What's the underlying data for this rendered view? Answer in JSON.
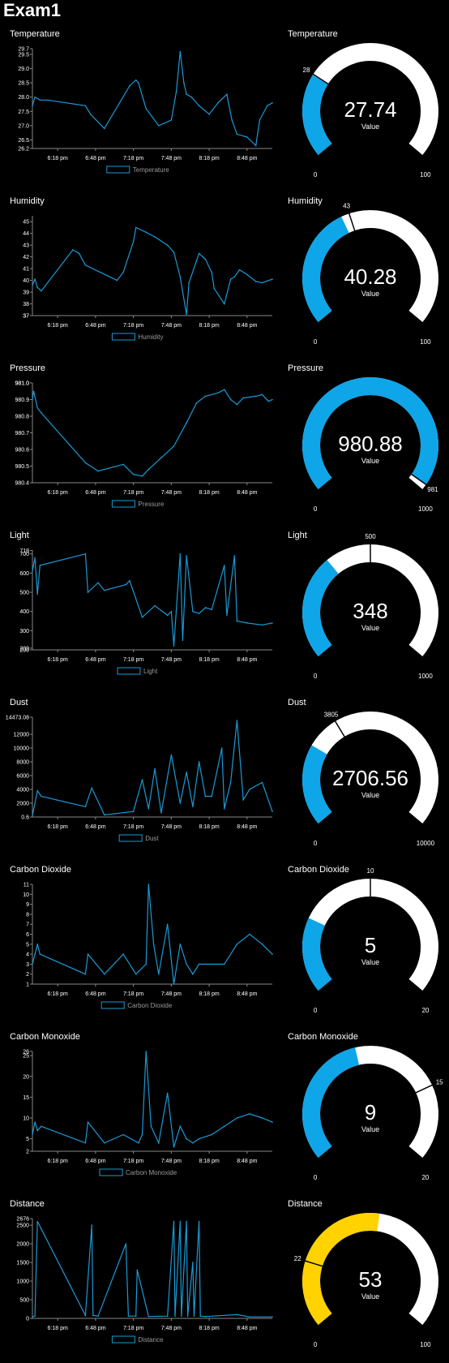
{
  "app": {
    "title": "Exam1"
  },
  "colors": {
    "series": "#1a9ad6",
    "gauge_fill": "#0ea5e9",
    "gauge_warn": "#ffd200",
    "gauge_track": "#ffffff",
    "axis": "#888888",
    "text": "#ffffff"
  },
  "shared_ticks": [
    "6:18 pm",
    "6:48 pm",
    "7:18 pm",
    "7:48 pm",
    "8:18 pm",
    "8:48 pm"
  ],
  "panels": [
    {
      "chart_data": {
        "type": "line",
        "title": "Temperature",
        "xlabel": "",
        "ylabel": "",
        "x_range": [
          "5:58 pm",
          "9:08 pm"
        ],
        "ylim": [
          26.2,
          29.7
        ],
        "y_ticks": [
          "29.7",
          "29.5",
          "29.0",
          "28.5",
          "28.0",
          "27.5",
          "27.0",
          "26.5",
          "26.2"
        ],
        "legend": [
          "Temperature"
        ],
        "legend_position": "bottom",
        "series": [
          {
            "name": "Temperature",
            "x": [
              "5:58 pm",
              "6:00 pm",
              "6:04 pm",
              "6:10 pm",
              "6:40 pm",
              "6:44 pm",
              "6:55 pm",
              "7:15 pm",
              "7:20 pm",
              "7:22 pm",
              "7:28 pm",
              "7:38 pm",
              "7:48 pm",
              "7:52 pm",
              "7:55 pm",
              "7:58 pm",
              "8:00 pm",
              "8:04 pm",
              "8:10 pm",
              "8:18 pm",
              "8:25 pm",
              "8:32 pm",
              "8:36 pm",
              "8:40 pm",
              "8:48 pm",
              "8:55 pm",
              "8:58 pm",
              "9:04 pm",
              "9:08 pm"
            ],
            "values": [
              27.7,
              28.0,
              27.9,
              27.9,
              27.7,
              27.4,
              26.9,
              28.4,
              28.6,
              28.5,
              27.6,
              27.0,
              27.2,
              28.2,
              29.6,
              28.5,
              28.1,
              28.0,
              27.7,
              27.4,
              27.8,
              28.1,
              27.2,
              26.7,
              26.6,
              26.3,
              27.2,
              27.7,
              27.8
            ]
          }
        ]
      },
      "gauge": {
        "title": "Temperature",
        "value_text": "27.74",
        "label": "Value",
        "min_label": "0",
        "max_label": "100",
        "marker_label": "28",
        "value": 27.74,
        "min": 0,
        "max": 100,
        "marker": 28,
        "color": "#0ea5e9"
      }
    },
    {
      "chart_data": {
        "type": "line",
        "title": "Humidity",
        "xlabel": "",
        "ylabel": "",
        "x_range": [
          "5:58 pm",
          "9:08 pm"
        ],
        "ylim": [
          37,
          45.5
        ],
        "y_ticks": [
          "45",
          "44",
          "43",
          "42",
          "41",
          "40",
          "39",
          "38",
          "37",
          "37"
        ],
        "legend": [
          "Humidity"
        ],
        "legend_position": "bottom",
        "series": [
          {
            "name": "Humidity",
            "x": [
              "5:58 pm",
              "6:00 pm",
              "6:02 pm",
              "6:05 pm",
              "6:30 pm",
              "6:35 pm",
              "6:40 pm",
              "7:05 pm",
              "7:10 pm",
              "7:18 pm",
              "7:20 pm",
              "7:28 pm",
              "7:35 pm",
              "7:45 pm",
              "7:50 pm",
              "7:55 pm",
              "8:00 pm",
              "8:02 pm",
              "8:10 pm",
              "8:15 pm",
              "8:20 pm",
              "8:22 pm",
              "8:30 pm",
              "8:35 pm",
              "8:38 pm",
              "8:42 pm",
              "8:48 pm",
              "8:55 pm",
              "9:00 pm",
              "9:08 pm"
            ],
            "values": [
              39.6,
              40.1,
              39.4,
              39.1,
              42.6,
              42.3,
              41.3,
              40.0,
              40.7,
              43.3,
              44.5,
              44.1,
              43.7,
              43.0,
              42.4,
              40.3,
              37.1,
              39.8,
              42.3,
              41.8,
              40.7,
              39.3,
              38.0,
              40.1,
              40.3,
              40.9,
              40.5,
              39.9,
              39.8,
              40.1
            ]
          }
        ]
      },
      "gauge": {
        "title": "Humidity",
        "value_text": "40.28",
        "label": "Value",
        "min_label": "0",
        "max_label": "100",
        "marker_label": "43",
        "value": 40.28,
        "min": 0,
        "max": 100,
        "marker": 43,
        "color": "#0ea5e9"
      }
    },
    {
      "chart_data": {
        "type": "line",
        "title": "Pressure",
        "xlabel": "",
        "ylabel": "",
        "x_range": [
          "5:58 pm",
          "9:08 pm"
        ],
        "ylim": [
          980.4,
          981.0
        ],
        "y_ticks": [
          "981.0",
          "981.0",
          "980.9",
          "980.8",
          "980.7",
          "980.6",
          "980.5",
          "980.4"
        ],
        "legend": [
          "Pressure"
        ],
        "legend_position": "bottom",
        "series": [
          {
            "name": "Pressure",
            "x": [
              "5:58 pm",
              "5:59 pm",
              "6:02 pm",
              "6:05 pm",
              "6:40 pm",
              "6:50 pm",
              "7:10 pm",
              "7:18 pm",
              "7:25 pm",
              "7:30 pm",
              "7:40 pm",
              "7:50 pm",
              "8:00 pm",
              "8:08 pm",
              "8:15 pm",
              "8:25 pm",
              "8:30 pm",
              "8:35 pm",
              "8:40 pm",
              "8:45 pm",
              "8:55 pm",
              "9:00 pm",
              "9:05 pm",
              "9:08 pm"
            ],
            "values": [
              980.9,
              980.95,
              980.85,
              980.82,
              980.52,
              980.47,
              980.51,
              980.45,
              980.44,
              980.48,
              980.55,
              980.62,
              980.76,
              980.88,
              980.92,
              980.94,
              980.96,
              980.9,
              980.87,
              980.91,
              980.92,
              980.93,
              980.89,
              980.9
            ]
          }
        ]
      },
      "gauge": {
        "title": "Pressure",
        "value_text": "980.88",
        "label": "Value",
        "min_label": "0",
        "max_label": "1000",
        "marker_label": "981",
        "value": 980.88,
        "min": 0,
        "max": 1000,
        "marker": 981,
        "color": "#0ea5e9"
      }
    },
    {
      "chart_data": {
        "type": "line",
        "title": "Light",
        "xlabel": "",
        "ylabel": "",
        "x_range": [
          "5:58 pm",
          "9:08 pm"
        ],
        "ylim": [
          200,
          720
        ],
        "y_ticks": [
          "718",
          "700",
          "600",
          "500",
          "400",
          "300",
          "209",
          "200"
        ],
        "legend": [
          "Light"
        ],
        "legend_position": "bottom",
        "series": [
          {
            "name": "Light",
            "x": [
              "5:58 pm",
              "6:00 pm",
              "6:02 pm",
              "6:04 pm",
              "6:40 pm",
              "6:42 pm",
              "6:50 pm",
              "6:55 pm",
              "7:12 pm",
              "7:15 pm",
              "7:25 pm",
              "7:35 pm",
              "7:45 pm",
              "7:48 pm",
              "7:50 pm",
              "7:55 pm",
              "7:57 pm",
              "8:00 pm",
              "8:05 pm",
              "8:10 pm",
              "8:15 pm",
              "8:20 pm",
              "8:30 pm",
              "8:32 pm",
              "8:38 pm",
              "8:40 pm",
              "8:48 pm",
              "9:00 pm",
              "9:08 pm"
            ],
            "values": [
              610,
              680,
              490,
              640,
              700,
              500,
              550,
              510,
              540,
              560,
              370,
              430,
              380,
              400,
              220,
              700,
              250,
              690,
              400,
              390,
              420,
              410,
              640,
              380,
              690,
              350,
              340,
              330,
              340
            ]
          }
        ]
      },
      "gauge": {
        "title": "Light",
        "value_text": "348",
        "label": "Value",
        "min_label": "0",
        "max_label": "1000",
        "marker_label": "500",
        "value": 348,
        "min": 0,
        "max": 1000,
        "marker": 500,
        "color": "#0ea5e9"
      }
    },
    {
      "chart_data": {
        "type": "line",
        "title": "Dust",
        "xlabel": "",
        "ylabel": "",
        "x_range": [
          "5:58 pm",
          "9:08 pm"
        ],
        "ylim": [
          0.6,
          14473.08
        ],
        "y_ticks": [
          "14473.08",
          "12000",
          "10000",
          "8000",
          "6000",
          "4000",
          "2000",
          "0.6"
        ],
        "legend": [
          "Dust"
        ],
        "legend_position": "bottom",
        "series": [
          {
            "name": "Dust",
            "x": [
              "5:58 pm",
              "6:02 pm",
              "6:05 pm",
              "6:40 pm",
              "6:45 pm",
              "6:55 pm",
              "7:18 pm",
              "7:25 pm",
              "7:30 pm",
              "7:35 pm",
              "7:40 pm",
              "7:48 pm",
              "7:55 pm",
              "8:00 pm",
              "8:05 pm",
              "8:10 pm",
              "8:15 pm",
              "8:20 pm",
              "8:28 pm",
              "8:30 pm",
              "8:35 pm",
              "8:40 pm",
              "8:45 pm",
              "8:50 pm",
              "9:00 pm",
              "9:08 pm"
            ],
            "values": [
              200,
              3800,
              3000,
              1500,
              4200,
              300,
              800,
              5400,
              1200,
              7000,
              600,
              9000,
              2000,
              6500,
              1500,
              8000,
              3000,
              3000,
              10000,
              1200,
              5000,
              14000,
              2500,
              4000,
              5000,
              800
            ]
          }
        ]
      },
      "gauge": {
        "title": "Dust",
        "value_text": "2706.56",
        "label": "Value",
        "min_label": "0",
        "max_label": "10000",
        "marker_label": "3805",
        "value": 2706.56,
        "min": 0,
        "max": 10000,
        "marker": 3805,
        "color": "#0ea5e9"
      }
    },
    {
      "chart_data": {
        "type": "line",
        "title": "Carbon Dioxide",
        "xlabel": "",
        "ylabel": "",
        "x_range": [
          "5:58 pm",
          "9:08 pm"
        ],
        "ylim": [
          1,
          11
        ],
        "y_ticks": [
          "11",
          "10",
          "9",
          "8",
          "7",
          "6",
          "5",
          "4",
          "3",
          "2",
          "1"
        ],
        "legend": [
          "Carbon Dioxide"
        ],
        "legend_position": "bottom",
        "series": [
          {
            "name": "Carbon Dioxide",
            "x": [
              "5:58 pm",
              "6:00 pm",
              "6:02 pm",
              "6:04 pm",
              "6:40 pm",
              "6:42 pm",
              "6:55 pm",
              "7:10 pm",
              "7:20 pm",
              "7:28 pm",
              "7:30 pm",
              "7:34 pm",
              "7:38 pm",
              "7:45 pm",
              "7:50 pm",
              "7:55 pm",
              "8:00 pm",
              "8:05 pm",
              "8:10 pm",
              "8:30 pm",
              "8:40 pm",
              "8:50 pm",
              "9:00 pm",
              "9:08 pm"
            ],
            "values": [
              3,
              4,
              5,
              4,
              2,
              4,
              2,
              4,
              2,
              3,
              11,
              5,
              2,
              7,
              1,
              5,
              3,
              2,
              3,
              3,
              5,
              6,
              5,
              4
            ]
          }
        ]
      },
      "gauge": {
        "title": "Carbon Dioxide",
        "value_text": "5",
        "label": "Value",
        "min_label": "0",
        "max_label": "20",
        "marker_label": "10",
        "value": 5,
        "min": 0,
        "max": 20,
        "marker": 10,
        "color": "#0ea5e9"
      }
    },
    {
      "chart_data": {
        "type": "line",
        "title": "Carbon Monoxide",
        "xlabel": "",
        "ylabel": "",
        "x_range": [
          "5:58 pm",
          "9:08 pm"
        ],
        "ylim": [
          2,
          26
        ],
        "y_ticks": [
          "26",
          "25",
          "20",
          "15",
          "10",
          "5",
          "2"
        ],
        "legend": [
          "Carbon Monoxide"
        ],
        "legend_position": "bottom",
        "series": [
          {
            "name": "Carbon Monoxide",
            "x": [
              "5:58 pm",
              "6:00 pm",
              "6:02 pm",
              "6:05 pm",
              "6:40 pm",
              "6:42 pm",
              "6:55 pm",
              "7:10 pm",
              "7:22 pm",
              "7:25 pm",
              "7:28 pm",
              "7:32 pm",
              "7:38 pm",
              "7:45 pm",
              "7:50 pm",
              "7:55 pm",
              "8:00 pm",
              "8:05 pm",
              "8:10 pm",
              "8:20 pm",
              "8:30 pm",
              "8:40 pm",
              "8:50 pm",
              "9:00 pm",
              "9:08 pm"
            ],
            "values": [
              6,
              9,
              7,
              8,
              4,
              9,
              4,
              6,
              4,
              6,
              26,
              8,
              4,
              16,
              3,
              8,
              5,
              4,
              5,
              6,
              8,
              10,
              11,
              10,
              9
            ]
          }
        ]
      },
      "gauge": {
        "title": "Carbon Monoxide",
        "value_text": "9",
        "label": "Value",
        "min_label": "0",
        "max_label": "20",
        "marker_label": "15",
        "value": 9,
        "min": 0,
        "max": 20,
        "marker": 15,
        "color": "#0ea5e9"
      }
    },
    {
      "chart_data": {
        "type": "line",
        "title": "Distance",
        "xlabel": "",
        "ylabel": "",
        "x_range": [
          "5:58 pm",
          "9:08 pm"
        ],
        "ylim": [
          0,
          2676
        ],
        "y_ticks": [
          "2676",
          "2500",
          "2000",
          "1500",
          "1000",
          "500",
          "0"
        ],
        "legend": [
          "Distance"
        ],
        "legend_position": "bottom",
        "series": [
          {
            "name": "Distance",
            "x": [
              "5:58 pm",
              "6:00 pm",
              "6:02 pm",
              "6:05 pm",
              "6:40 pm",
              "6:45 pm",
              "6:46 pm",
              "6:50 pm",
              "7:12 pm",
              "7:14 pm",
              "7:20 pm",
              "7:21 pm",
              "7:30 pm",
              "7:45 pm",
              "7:50 pm",
              "7:51 pm",
              "7:55 pm",
              "7:56 pm",
              "8:00 pm",
              "8:01 pm",
              "8:05 pm",
              "8:06 pm",
              "8:10 pm",
              "8:11 pm",
              "8:15 pm",
              "8:40 pm",
              "8:50 pm",
              "9:08 pm"
            ],
            "values": [
              40,
              60,
              2600,
              2400,
              80,
              2500,
              80,
              60,
              2000,
              60,
              60,
              1300,
              50,
              60,
              2600,
              60,
              2600,
              60,
              2600,
              60,
              1500,
              60,
              2600,
              60,
              50,
              100,
              40,
              40
            ]
          }
        ]
      },
      "gauge": {
        "title": "Distance",
        "value_text": "53",
        "label": "Value",
        "min_label": "0",
        "max_label": "100",
        "marker_label": "22",
        "value": 53,
        "min": 0,
        "max": 100,
        "marker": 22,
        "color": "#ffd200"
      }
    }
  ]
}
